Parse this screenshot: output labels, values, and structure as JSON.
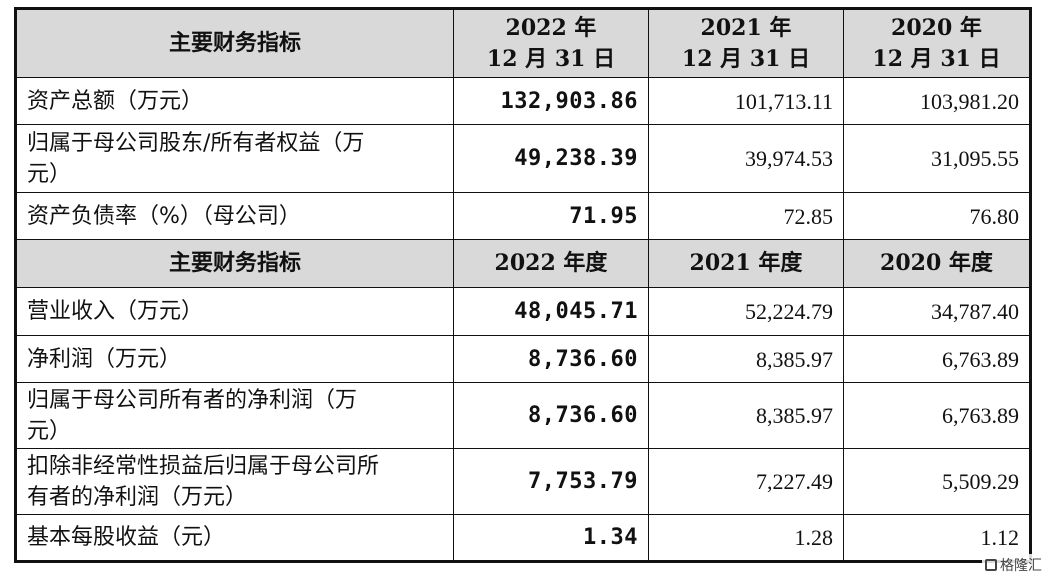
{
  "section1": {
    "header": {
      "label": "主要财务指标",
      "col1_line1": "2022 年",
      "col1_line2": "12 月 31 日",
      "col2_line1": "2021 年",
      "col2_line2": "12 月 31 日",
      "col3_line1": "2020 年",
      "col3_line2": "12 月 31 日"
    },
    "rows": [
      {
        "label": "资产总额（万元）",
        "v2022": "132,903.86",
        "v2021": "101,713.11",
        "v2020": "103,981.20"
      },
      {
        "label_line1": "归属于母公司股东/所有者权益（万",
        "label_line2": "元）",
        "v2022": "49,238.39",
        "v2021": "39,974.53",
        "v2020": "31,095.55"
      },
      {
        "label": "资产负债率（%）（母公司）",
        "v2022": "71.95",
        "v2021": "72.85",
        "v2020": "76.80"
      }
    ]
  },
  "section2": {
    "header": {
      "label": "主要财务指标",
      "col1": "2022 年度",
      "col2": "2021 年度",
      "col3": "2020 年度"
    },
    "rows": [
      {
        "label": "营业收入（万元）",
        "v2022": "48,045.71",
        "v2021": "52,224.79",
        "v2020": "34,787.40"
      },
      {
        "label": "净利润（万元）",
        "v2022": "8,736.60",
        "v2021": "8,385.97",
        "v2020": "6,763.89"
      },
      {
        "label_line1": "归属于母公司所有者的净利润（万",
        "label_line2": "元）",
        "v2022": "8,736.60",
        "v2021": "8,385.97",
        "v2020": "6,763.89"
      },
      {
        "label_line1": "扣除非经常性损益后归属于母公司所",
        "label_line2": "有者的净利润（万元）",
        "v2022": "7,753.79",
        "v2021": "7,227.49",
        "v2020": "5,509.29"
      },
      {
        "label": "基本每股收益（元）",
        "v2022": "1.34",
        "v2021": "1.28",
        "v2020": "1.12"
      }
    ]
  },
  "watermark": {
    "text": "格隆汇"
  }
}
